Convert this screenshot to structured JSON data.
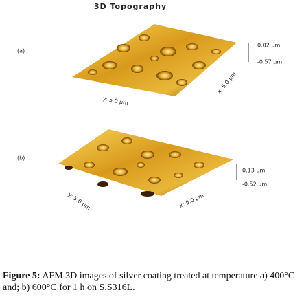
{
  "header": {
    "title": "3D Topography"
  },
  "panels": [
    {
      "label": "(a)",
      "z_max": "0.02 µm",
      "z_min": "-0.57 µm",
      "y_axis": "y: 5.0 µm",
      "x_axis": "x: 5.0 µm"
    },
    {
      "label": "(b)",
      "z_max": "0.13 µm",
      "z_min": "-0.52 µm",
      "y_axis": "y: 5.0 µm",
      "x_axis": "x: 5.0 µm"
    }
  ],
  "caption": {
    "label": "Figure 5:",
    "text": "AFM 3D images of silver coating treated at temperature a) 400°C and; b) 600°C for 1 h on S.S316L."
  }
}
